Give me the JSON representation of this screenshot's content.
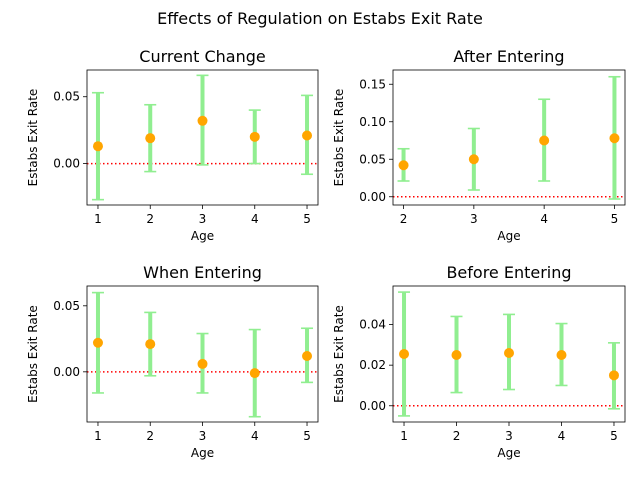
{
  "colors": {
    "marker": "#FFA500",
    "errorbar": "#90EE90",
    "zero_line": "#FF0000"
  },
  "chart_data": {
    "type": "errorbar",
    "title": "Effects of Regulation on Estabs Exit Rate",
    "panels": [
      {
        "title": "Current Change",
        "xlabel": "Age",
        "ylabel": "Estabs Exit Rate",
        "x": [
          1,
          2,
          3,
          4,
          5
        ],
        "y": [
          0.013,
          0.019,
          0.032,
          0.02,
          0.021
        ],
        "lower": [
          -0.027,
          -0.006,
          -0.001,
          0.0,
          -0.008
        ],
        "upper": [
          0.053,
          0.044,
          0.066,
          0.04,
          0.051
        ],
        "xlim": [
          0.79,
          5.21
        ],
        "ylim": [
          -0.031,
          0.07
        ],
        "xticks": [
          1,
          2,
          3,
          4,
          5
        ],
        "yticks": [
          0.0,
          0.05
        ],
        "ytick_labels": [
          "0.00",
          "0.05"
        ],
        "reference_line": 0
      },
      {
        "title": "After Entering",
        "xlabel": "Age",
        "ylabel": "Estabs Exit Rate",
        "x": [
          2,
          3,
          4,
          5
        ],
        "y": [
          0.042,
          0.05,
          0.075,
          0.078
        ],
        "lower": [
          0.021,
          0.009,
          0.021,
          -0.003
        ],
        "upper": [
          0.064,
          0.091,
          0.13,
          0.16
        ],
        "xlim": [
          1.85,
          5.15
        ],
        "ylim": [
          -0.011,
          0.169
        ],
        "xticks": [
          2,
          3,
          4,
          5
        ],
        "yticks": [
          0.0,
          0.05,
          0.1,
          0.15
        ],
        "ytick_labels": [
          "0.00",
          "0.05",
          "0.10",
          "0.15"
        ],
        "reference_line": 0
      },
      {
        "title": "When Entering",
        "xlabel": "Age",
        "ylabel": "Estabs Exit Rate",
        "x": [
          1,
          2,
          3,
          4,
          5
        ],
        "y": [
          0.022,
          0.021,
          0.006,
          -0.001,
          0.012
        ],
        "lower": [
          -0.016,
          -0.003,
          -0.016,
          -0.034,
          -0.008
        ],
        "upper": [
          0.06,
          0.045,
          0.029,
          0.032,
          0.033
        ],
        "xlim": [
          0.79,
          5.21
        ],
        "ylim": [
          -0.038,
          0.065
        ],
        "xticks": [
          1,
          2,
          3,
          4,
          5
        ],
        "yticks": [
          0.0,
          0.05
        ],
        "ytick_labels": [
          "0.00",
          "0.05"
        ],
        "reference_line": 0
      },
      {
        "title": "Before Entering",
        "xlabel": "Age",
        "ylabel": "Estabs Exit Rate",
        "x": [
          1,
          2,
          3,
          4,
          5
        ],
        "y": [
          0.0255,
          0.025,
          0.026,
          0.025,
          0.015
        ],
        "lower": [
          -0.005,
          0.0065,
          0.008,
          0.01,
          -0.0015
        ],
        "upper": [
          0.056,
          0.044,
          0.045,
          0.0405,
          0.031
        ],
        "xlim": [
          0.79,
          5.21
        ],
        "ylim": [
          -0.008,
          0.059
        ],
        "xticks": [
          1,
          2,
          3,
          4,
          5
        ],
        "yticks": [
          0.0,
          0.02,
          0.04
        ],
        "ytick_labels": [
          "0.00",
          "0.02",
          "0.04"
        ],
        "reference_line": 0
      }
    ]
  }
}
